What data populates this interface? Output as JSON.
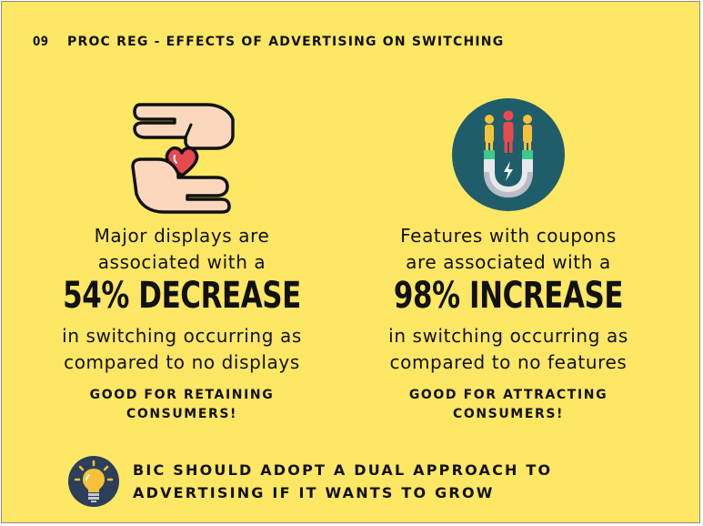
{
  "header": {
    "page_number": "09",
    "title": "PROC REG - EFFECTS OF ADVERTISING ON SWITCHING"
  },
  "left": {
    "icon": "hands-heart-icon",
    "lead_line1": "Major displays are",
    "lead_line2": "associated with a",
    "big": "54% DECREASE",
    "detail_line1": "in switching occurring as",
    "detail_line2": "compared to no displays",
    "note": "GOOD FOR RETAINING CONSUMERS!"
  },
  "right": {
    "icon": "magnet-people-icon",
    "lead_line1": "Features with coupons",
    "lead_line2": "are associated with a",
    "big": "98% INCREASE",
    "detail_line1": "in switching occurring as",
    "detail_line2": "compared to no features",
    "note": "GOOD FOR ATTRACTING CONSUMERS!"
  },
  "footer": {
    "icon": "lightbulb-icon",
    "text": "BIC SHOULD ADOPT A DUAL APPROACH TO ADVERTISING IF IT WANTS TO GROW"
  },
  "colors": {
    "background": "#fde764",
    "text": "#111111",
    "heart": "#e8484f",
    "skin": "#fad7bd",
    "magnet_circle": "#1f5d6b",
    "bulb_circle": "#2c3e5a"
  }
}
